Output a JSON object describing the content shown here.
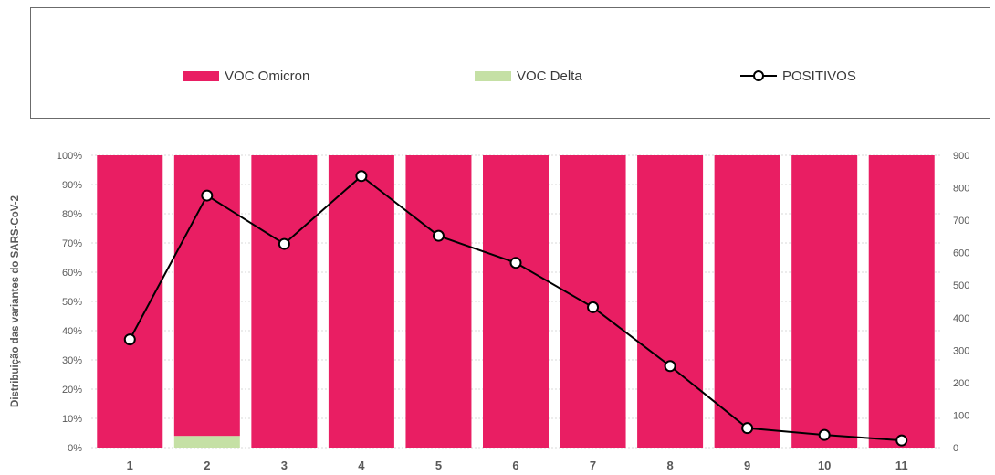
{
  "colors": {
    "omicron": "#e91e63",
    "delta": "#c5e0a5",
    "line": "#000000",
    "grid": "#d9d9d9",
    "axis_text": "#595959"
  },
  "legend": [
    {
      "label": "VOC Omicron",
      "kind": "bar",
      "color": "#e91e63"
    },
    {
      "label": "VOC Delta",
      "kind": "bar",
      "color": "#c5e0a5"
    },
    {
      "label": "POSITIVOS",
      "kind": "line",
      "color": "#000000"
    }
  ],
  "chart_data": {
    "type": "bar",
    "title": "",
    "xlabel": "",
    "ylabel": "Distribuição das variantes do SARS-CoV-2",
    "y2label": "",
    "categories": [
      "1",
      "2",
      "3",
      "4",
      "5",
      "6",
      "7",
      "8",
      "9",
      "10",
      "11"
    ],
    "stacked": true,
    "ylim": [
      0,
      100
    ],
    "y2lim": [
      0,
      900
    ],
    "yticks": [
      "0%",
      "10%",
      "20%",
      "30%",
      "40%",
      "50%",
      "60%",
      "70%",
      "80%",
      "90%",
      "100%"
    ],
    "y2ticks": [
      "0",
      "100",
      "200",
      "300",
      "400",
      "500",
      "600",
      "700",
      "800",
      "900"
    ],
    "legend_position": "top",
    "grid": true,
    "series": [
      {
        "name": "VOC Omicron",
        "type": "bar",
        "axis": "left",
        "values": [
          100,
          96,
          100,
          100,
          100,
          100,
          100,
          100,
          100,
          100,
          100
        ]
      },
      {
        "name": "VOC Delta",
        "type": "bar",
        "axis": "left",
        "values": [
          0,
          4,
          0,
          0,
          0,
          0,
          0,
          0,
          0,
          0,
          0
        ]
      },
      {
        "name": "POSITIVOS",
        "type": "line",
        "axis": "right",
        "values": [
          333,
          776,
          627,
          836,
          652,
          569,
          432,
          251,
          60,
          39,
          22
        ]
      }
    ]
  }
}
